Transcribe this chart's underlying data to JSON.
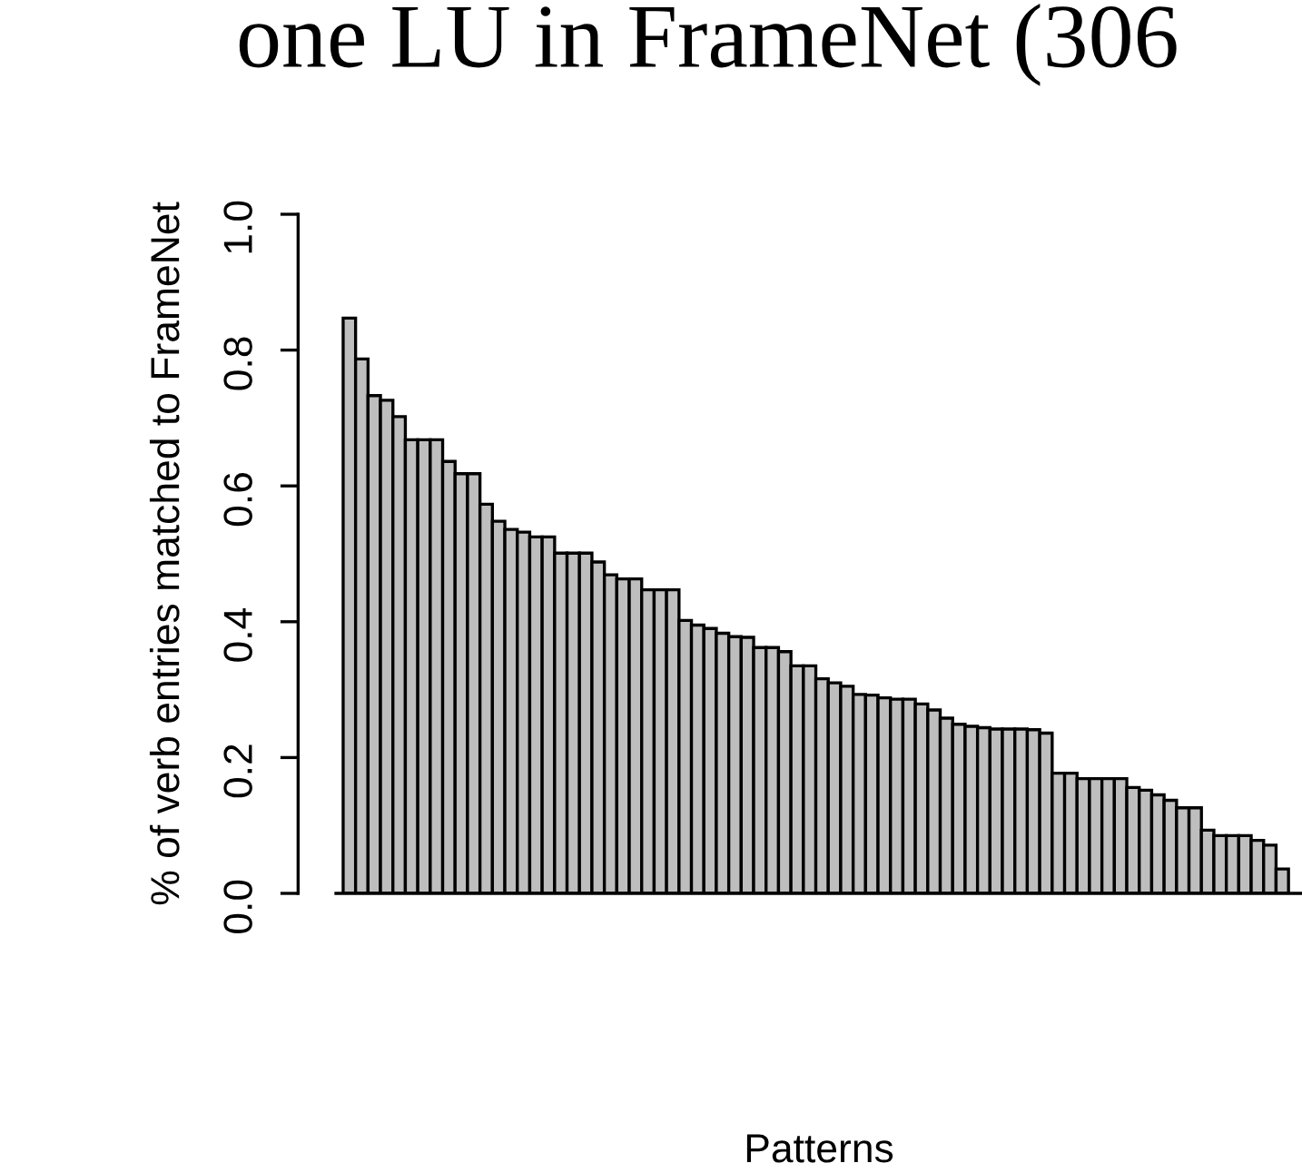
{
  "chart_data": {
    "type": "bar",
    "title": "one LU in FrameNet (306",
    "xlabel": "Patterns",
    "ylabel": "% of verb entries matched to FrameNet",
    "categories": [
      null,
      null,
      null,
      null,
      null,
      null,
      null,
      null,
      null,
      null,
      null,
      null,
      null,
      null,
      null,
      null,
      null,
      null,
      null,
      null,
      null,
      null,
      null,
      null,
      null,
      null,
      null,
      null,
      null,
      null,
      null,
      null,
      null,
      null,
      null,
      null,
      null,
      null,
      null,
      null,
      null,
      null,
      null,
      null,
      null,
      null,
      null,
      null,
      null,
      null,
      null,
      null,
      null,
      null,
      null,
      null,
      null,
      null,
      null,
      null,
      null,
      null,
      null,
      null,
      null,
      null,
      null,
      null,
      null,
      null,
      null,
      null,
      null,
      null,
      null,
      null
    ],
    "values": [
      0.847,
      0.787,
      0.733,
      0.726,
      0.702,
      0.668,
      0.668,
      0.668,
      0.636,
      0.618,
      0.618,
      0.573,
      0.548,
      0.536,
      0.532,
      0.525,
      0.525,
      0.501,
      0.501,
      0.501,
      0.488,
      0.469,
      0.463,
      0.463,
      0.447,
      0.447,
      0.447,
      0.402,
      0.395,
      0.39,
      0.383,
      0.378,
      0.377,
      0.362,
      0.362,
      0.356,
      0.335,
      0.335,
      0.316,
      0.31,
      0.305,
      0.293,
      0.292,
      0.288,
      0.286,
      0.286,
      0.279,
      0.27,
      0.258,
      0.249,
      0.246,
      0.244,
      0.242,
      0.242,
      0.242,
      0.241,
      0.236,
      0.177,
      0.177,
      0.169,
      0.169,
      0.169,
      0.169,
      0.156,
      0.152,
      0.145,
      0.137,
      0.126,
      0.126,
      0.093,
      0.085,
      0.085,
      0.085,
      0.078,
      0.071,
      0.036
    ],
    "color": "#bebebe",
    "ylim": [
      0,
      1
    ],
    "yticks": [
      {
        "value": 0,
        "label": "0.0"
      },
      {
        "value": 0.2,
        "label": "0.2"
      },
      {
        "value": 0.4,
        "label": "0.4"
      },
      {
        "value": 0.6,
        "label": "0.6"
      },
      {
        "value": 0.8,
        "label": "0.8"
      },
      {
        "value": 1,
        "label": "1.0"
      }
    ],
    "grid": false,
    "legend": false,
    "tick_labels": "y"
  }
}
